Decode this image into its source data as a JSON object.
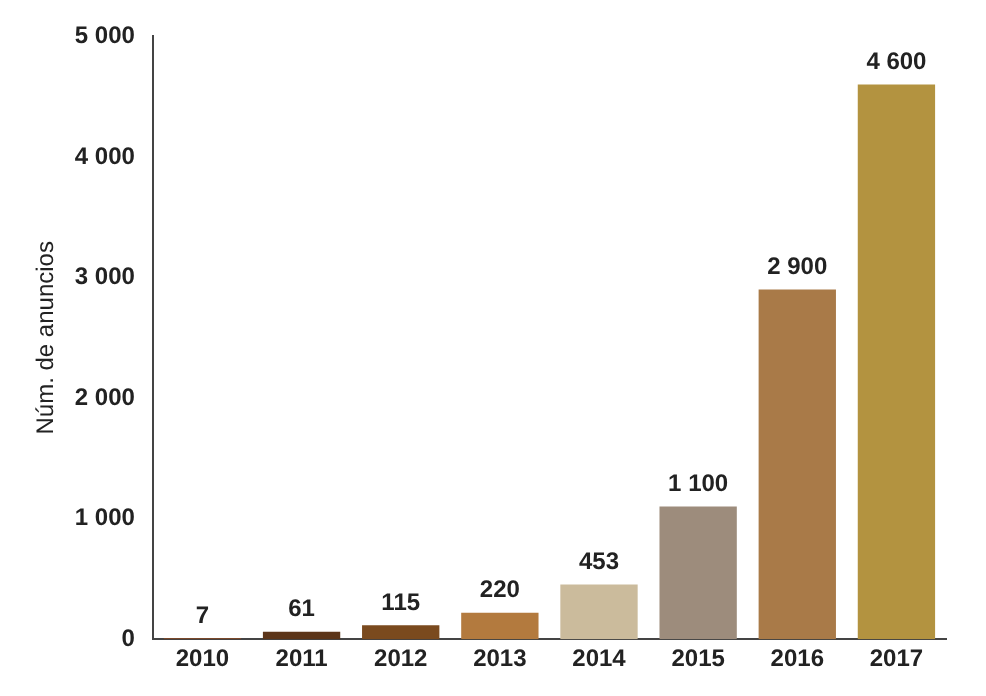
{
  "chart_data": {
    "type": "bar",
    "ylabel": "Núm. de anuncios",
    "categories": [
      "2010",
      "2011",
      "2012",
      "2013",
      "2014",
      "2015",
      "2016",
      "2017"
    ],
    "values": [
      7,
      61,
      115,
      220,
      453,
      1100,
      2900,
      4600
    ],
    "value_labels": [
      "7",
      "61",
      "115",
      "220",
      "453",
      "1 100",
      "2 900",
      "4 600"
    ],
    "colors": [
      "#8c4a22",
      "#5c3519",
      "#7a4a1e",
      "#b37a3e",
      "#cbbb9c",
      "#9d8c7c",
      "#a97a48",
      "#b39340"
    ],
    "ylim": [
      0,
      5000
    ],
    "yticks": [
      0,
      {
        "value": 1000,
        "label": "1 000"
      },
      {
        "value": 2000,
        "label": "2 000"
      },
      {
        "value": 3000,
        "label": "3 000"
      },
      {
        "value": 4000,
        "label": "4 000"
      },
      {
        "value": 5000,
        "label": "5 000"
      }
    ],
    "grid": false,
    "legend": false
  }
}
